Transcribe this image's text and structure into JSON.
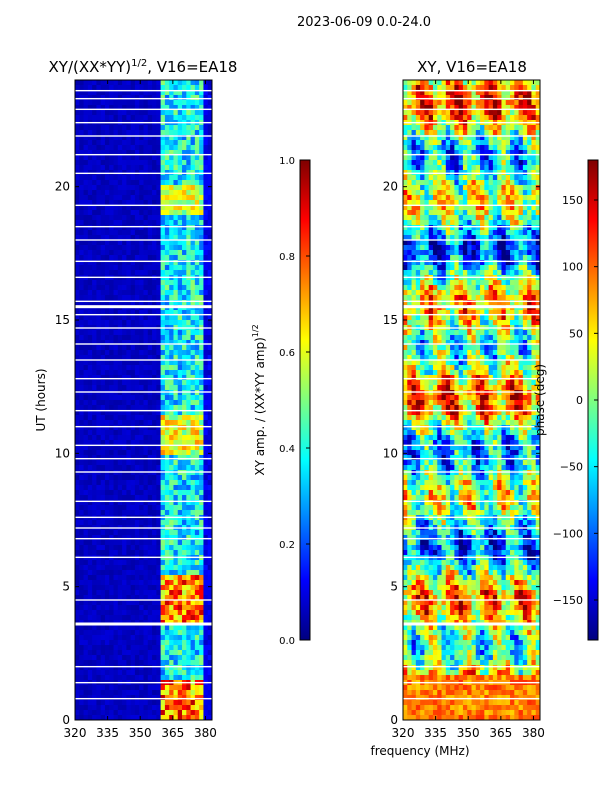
{
  "figure": {
    "suptitle": "2023-06-09 0.0-24.0",
    "shared_xlabel": "frequency (MHz)"
  },
  "colormap": {
    "name": "jet",
    "stops": [
      "#00007f",
      "#0000ff",
      "#007fff",
      "#00ffff",
      "#7fff7f",
      "#ffff00",
      "#ff7f00",
      "#ff0000",
      "#7f0000"
    ]
  },
  "chart_data": [
    {
      "type": "heatmap",
      "title": "XY/(XX*YY)^1/2, V16=EA18",
      "title_main": "XY/(XX*YY)",
      "title_sup": "1/2",
      "title_tail": ", V16=EA18",
      "xlabel": "",
      "ylabel": "UT (hours)",
      "xlim": [
        320,
        383
      ],
      "ylim": [
        0,
        24
      ],
      "xticks": [
        "320",
        "335",
        "350",
        "365",
        "380"
      ],
      "xtick_values": [
        320,
        335,
        350,
        365,
        380
      ],
      "yticks": [
        "0",
        "5",
        "10",
        "15",
        "20"
      ],
      "ytick_values": [
        0,
        5,
        10,
        15,
        20
      ],
      "colorbar": {
        "label": "XY amp. / (XX*YY amp)^1/2",
        "label_main": "XY amp. / (XX*YY amp)",
        "label_sup": "1/2",
        "range": [
          0.0,
          1.0
        ],
        "ticks": [
          "0.0",
          "0.2",
          "0.4",
          "0.6",
          "0.8",
          "1.0"
        ],
        "tick_values": [
          0.0,
          0.2,
          0.4,
          0.6,
          0.8,
          1.0
        ]
      },
      "description_bands": [
        {
          "freq_range": [
            320,
            360
          ],
          "approx_value": 0.05
        },
        {
          "freq_range": [
            360,
            380
          ],
          "approx_value": 0.4
        }
      ]
    },
    {
      "type": "heatmap",
      "title": "XY, V16=EA18",
      "xlabel": "frequency (MHz)",
      "ylabel": "",
      "xlim": [
        320,
        383
      ],
      "ylim": [
        0,
        24
      ],
      "xticks": [
        "320",
        "335",
        "350",
        "365",
        "380"
      ],
      "xtick_values": [
        320,
        335,
        350,
        365,
        380
      ],
      "yticks": [
        "0",
        "5",
        "10",
        "15",
        "20"
      ],
      "ytick_values": [
        0,
        5,
        10,
        15,
        20
      ],
      "colorbar": {
        "label": "phase (deg)",
        "range": [
          -180,
          180
        ],
        "ticks": [
          "−150",
          "−100",
          "−50",
          "0",
          "50",
          "100",
          "150"
        ],
        "tick_values": [
          -150,
          -100,
          -50,
          0,
          50,
          100,
          150
        ]
      }
    }
  ]
}
